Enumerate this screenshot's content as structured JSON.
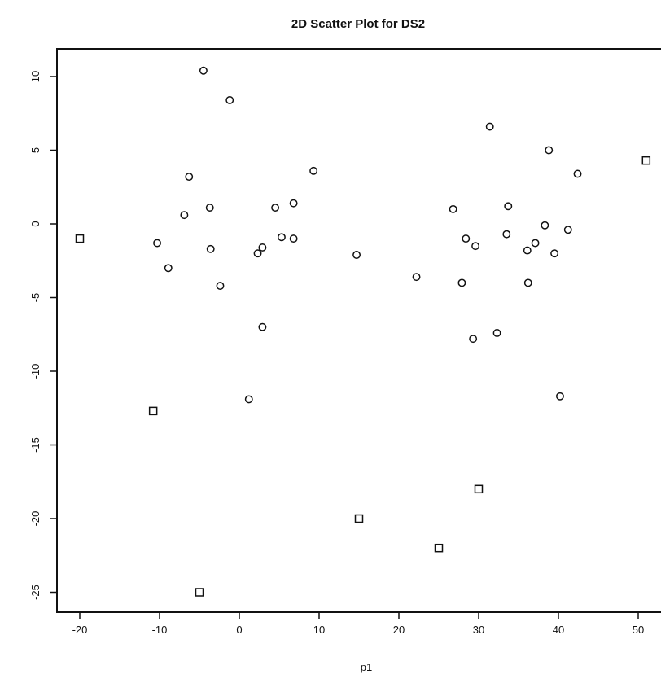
{
  "chart_data": {
    "type": "scatter",
    "title": "2D Scatter Plot for DS2",
    "xlabel": "p1",
    "ylabel": "",
    "xlim": [
      -22,
      52
    ],
    "ylim": [
      -26,
      12
    ],
    "x_ticks": [
      -20,
      -10,
      0,
      10,
      20,
      30,
      40,
      50
    ],
    "y_ticks": [
      10,
      5,
      0,
      -5,
      -10,
      -15,
      -20,
      -25
    ],
    "grid": false,
    "series": [
      {
        "marker": "circle",
        "points": [
          [
            -4.5,
            10.4
          ],
          [
            -1.2,
            8.4
          ],
          [
            -6.3,
            3.2
          ],
          [
            -6.9,
            0.6
          ],
          [
            -3.7,
            1.1
          ],
          [
            -10.3,
            -1.3
          ],
          [
            -3.6,
            -1.7
          ],
          [
            -8.9,
            -3.0
          ],
          [
            -2.4,
            -4.2
          ],
          [
            2.3,
            -2.0
          ],
          [
            2.9,
            -1.6
          ],
          [
            4.5,
            1.1
          ],
          [
            6.8,
            1.4
          ],
          [
            5.3,
            -0.9
          ],
          [
            6.8,
            -1.0
          ],
          [
            9.3,
            3.6
          ],
          [
            2.9,
            -7.0
          ],
          [
            1.2,
            -11.9
          ],
          [
            14.7,
            -2.1
          ],
          [
            22.2,
            -3.6
          ],
          [
            26.8,
            1.0
          ],
          [
            28.4,
            -1.0
          ],
          [
            29.6,
            -1.5
          ],
          [
            27.9,
            -4.0
          ],
          [
            29.3,
            -7.8
          ],
          [
            31.4,
            6.6
          ],
          [
            32.3,
            -7.4
          ],
          [
            33.5,
            -0.7
          ],
          [
            33.7,
            1.2
          ],
          [
            36.1,
            -1.8
          ],
          [
            37.1,
            -1.3
          ],
          [
            36.2,
            -4.0
          ],
          [
            38.3,
            -0.1
          ],
          [
            38.8,
            5.0
          ],
          [
            39.5,
            -2.0
          ],
          [
            41.2,
            -0.4
          ],
          [
            42.4,
            3.4
          ],
          [
            40.2,
            -11.7
          ]
        ]
      },
      {
        "marker": "square",
        "points": [
          [
            -20.0,
            -1.0
          ],
          [
            -10.8,
            -12.7
          ],
          [
            -5.0,
            -25.0
          ],
          [
            15.0,
            -20.0
          ],
          [
            25.0,
            -22.0
          ],
          [
            30.0,
            -18.0
          ],
          [
            51.0,
            4.3
          ]
        ]
      }
    ]
  }
}
